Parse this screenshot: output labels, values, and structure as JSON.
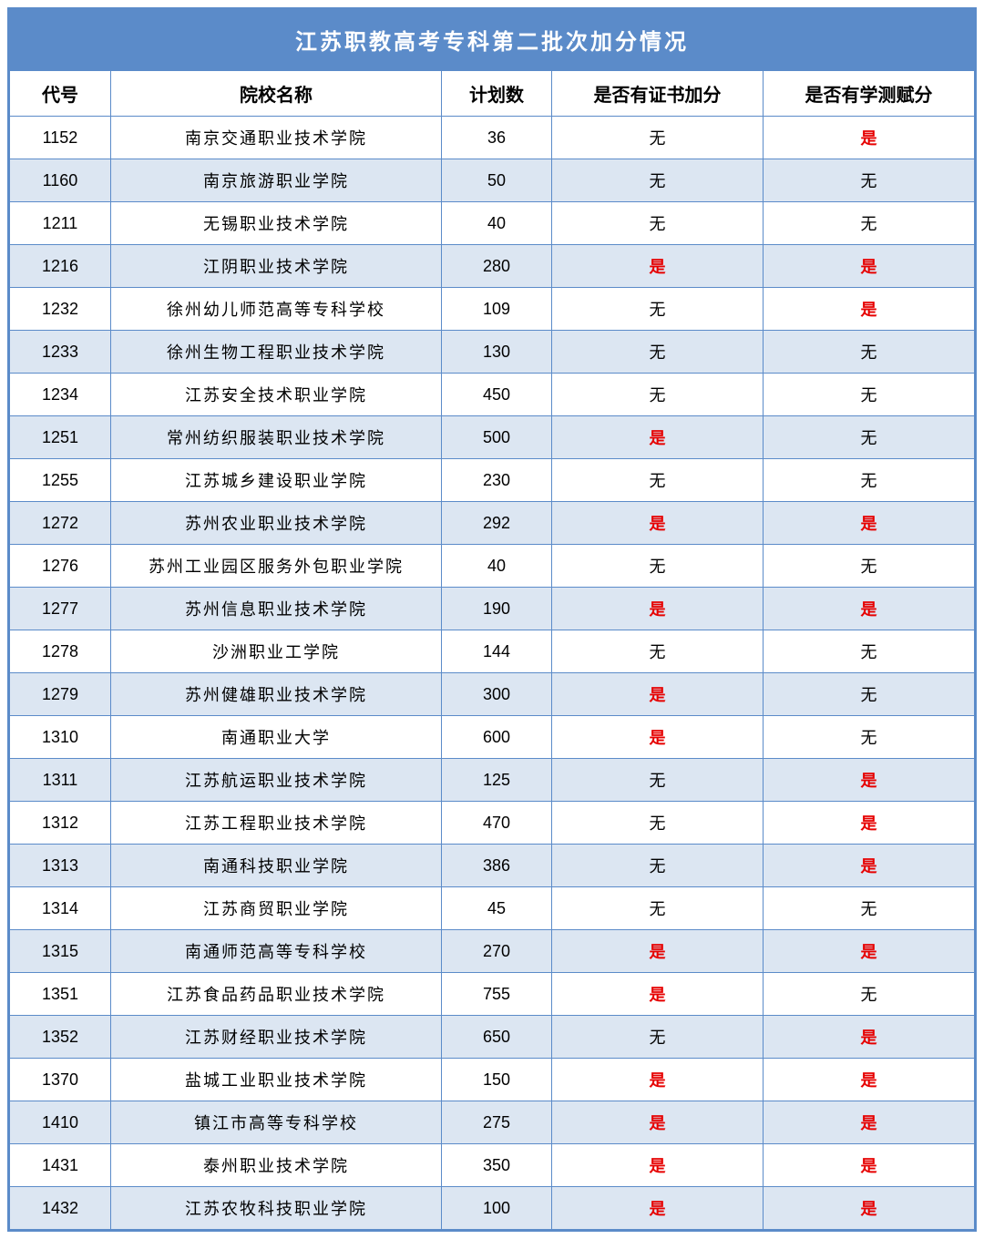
{
  "title": "江苏职教高考专科第二批次加分情况",
  "columns": [
    "代号",
    "院校名称",
    "计划数",
    "是否有证书加分",
    "是否有学测赋分"
  ],
  "yes_label": "是",
  "no_label": "无",
  "colors": {
    "header_bg": "#5b8bc9",
    "border": "#5b8bc9",
    "alt_row_bg": "#dce6f2",
    "plain_row_bg": "#ffffff",
    "yes_color": "#e60000",
    "text_color": "#000000",
    "title_text": "#ffffff"
  },
  "rows": [
    {
      "code": "1152",
      "name": "南京交通职业技术学院",
      "plan": "36",
      "cert": "无",
      "test": "是"
    },
    {
      "code": "1160",
      "name": "南京旅游职业学院",
      "plan": "50",
      "cert": "无",
      "test": "无"
    },
    {
      "code": "1211",
      "name": "无锡职业技术学院",
      "plan": "40",
      "cert": "无",
      "test": "无"
    },
    {
      "code": "1216",
      "name": "江阴职业技术学院",
      "plan": "280",
      "cert": "是",
      "test": "是"
    },
    {
      "code": "1232",
      "name": "徐州幼儿师范高等专科学校",
      "plan": "109",
      "cert": "无",
      "test": "是"
    },
    {
      "code": "1233",
      "name": "徐州生物工程职业技术学院",
      "plan": "130",
      "cert": "无",
      "test": "无"
    },
    {
      "code": "1234",
      "name": "江苏安全技术职业学院",
      "plan": "450",
      "cert": "无",
      "test": "无"
    },
    {
      "code": "1251",
      "name": "常州纺织服装职业技术学院",
      "plan": "500",
      "cert": "是",
      "test": "无"
    },
    {
      "code": "1255",
      "name": "江苏城乡建设职业学院",
      "plan": "230",
      "cert": "无",
      "test": "无"
    },
    {
      "code": "1272",
      "name": "苏州农业职业技术学院",
      "plan": "292",
      "cert": "是",
      "test": "是"
    },
    {
      "code": "1276",
      "name": "苏州工业园区服务外包职业学院",
      "plan": "40",
      "cert": "无",
      "test": "无"
    },
    {
      "code": "1277",
      "name": "苏州信息职业技术学院",
      "plan": "190",
      "cert": "是",
      "test": "是"
    },
    {
      "code": "1278",
      "name": "沙洲职业工学院",
      "plan": "144",
      "cert": "无",
      "test": "无"
    },
    {
      "code": "1279",
      "name": "苏州健雄职业技术学院",
      "plan": "300",
      "cert": "是",
      "test": "无"
    },
    {
      "code": "1310",
      "name": "南通职业大学",
      "plan": "600",
      "cert": "是",
      "test": "无"
    },
    {
      "code": "1311",
      "name": "江苏航运职业技术学院",
      "plan": "125",
      "cert": "无",
      "test": "是"
    },
    {
      "code": "1312",
      "name": "江苏工程职业技术学院",
      "plan": "470",
      "cert": "无",
      "test": "是"
    },
    {
      "code": "1313",
      "name": "南通科技职业学院",
      "plan": "386",
      "cert": "无",
      "test": "是"
    },
    {
      "code": "1314",
      "name": "江苏商贸职业学院",
      "plan": "45",
      "cert": "无",
      "test": "无"
    },
    {
      "code": "1315",
      "name": "南通师范高等专科学校",
      "plan": "270",
      "cert": "是",
      "test": "是"
    },
    {
      "code": "1351",
      "name": "江苏食品药品职业技术学院",
      "plan": "755",
      "cert": "是",
      "test": "无"
    },
    {
      "code": "1352",
      "name": "江苏财经职业技术学院",
      "plan": "650",
      "cert": "无",
      "test": "是"
    },
    {
      "code": "1370",
      "name": "盐城工业职业技术学院",
      "plan": "150",
      "cert": "是",
      "test": "是"
    },
    {
      "code": "1410",
      "name": "镇江市高等专科学校",
      "plan": "275",
      "cert": "是",
      "test": "是"
    },
    {
      "code": "1431",
      "name": "泰州职业技术学院",
      "plan": "350",
      "cert": "是",
      "test": "是"
    },
    {
      "code": "1432",
      "name": "江苏农牧科技职业学院",
      "plan": "100",
      "cert": "是",
      "test": "是"
    }
  ]
}
